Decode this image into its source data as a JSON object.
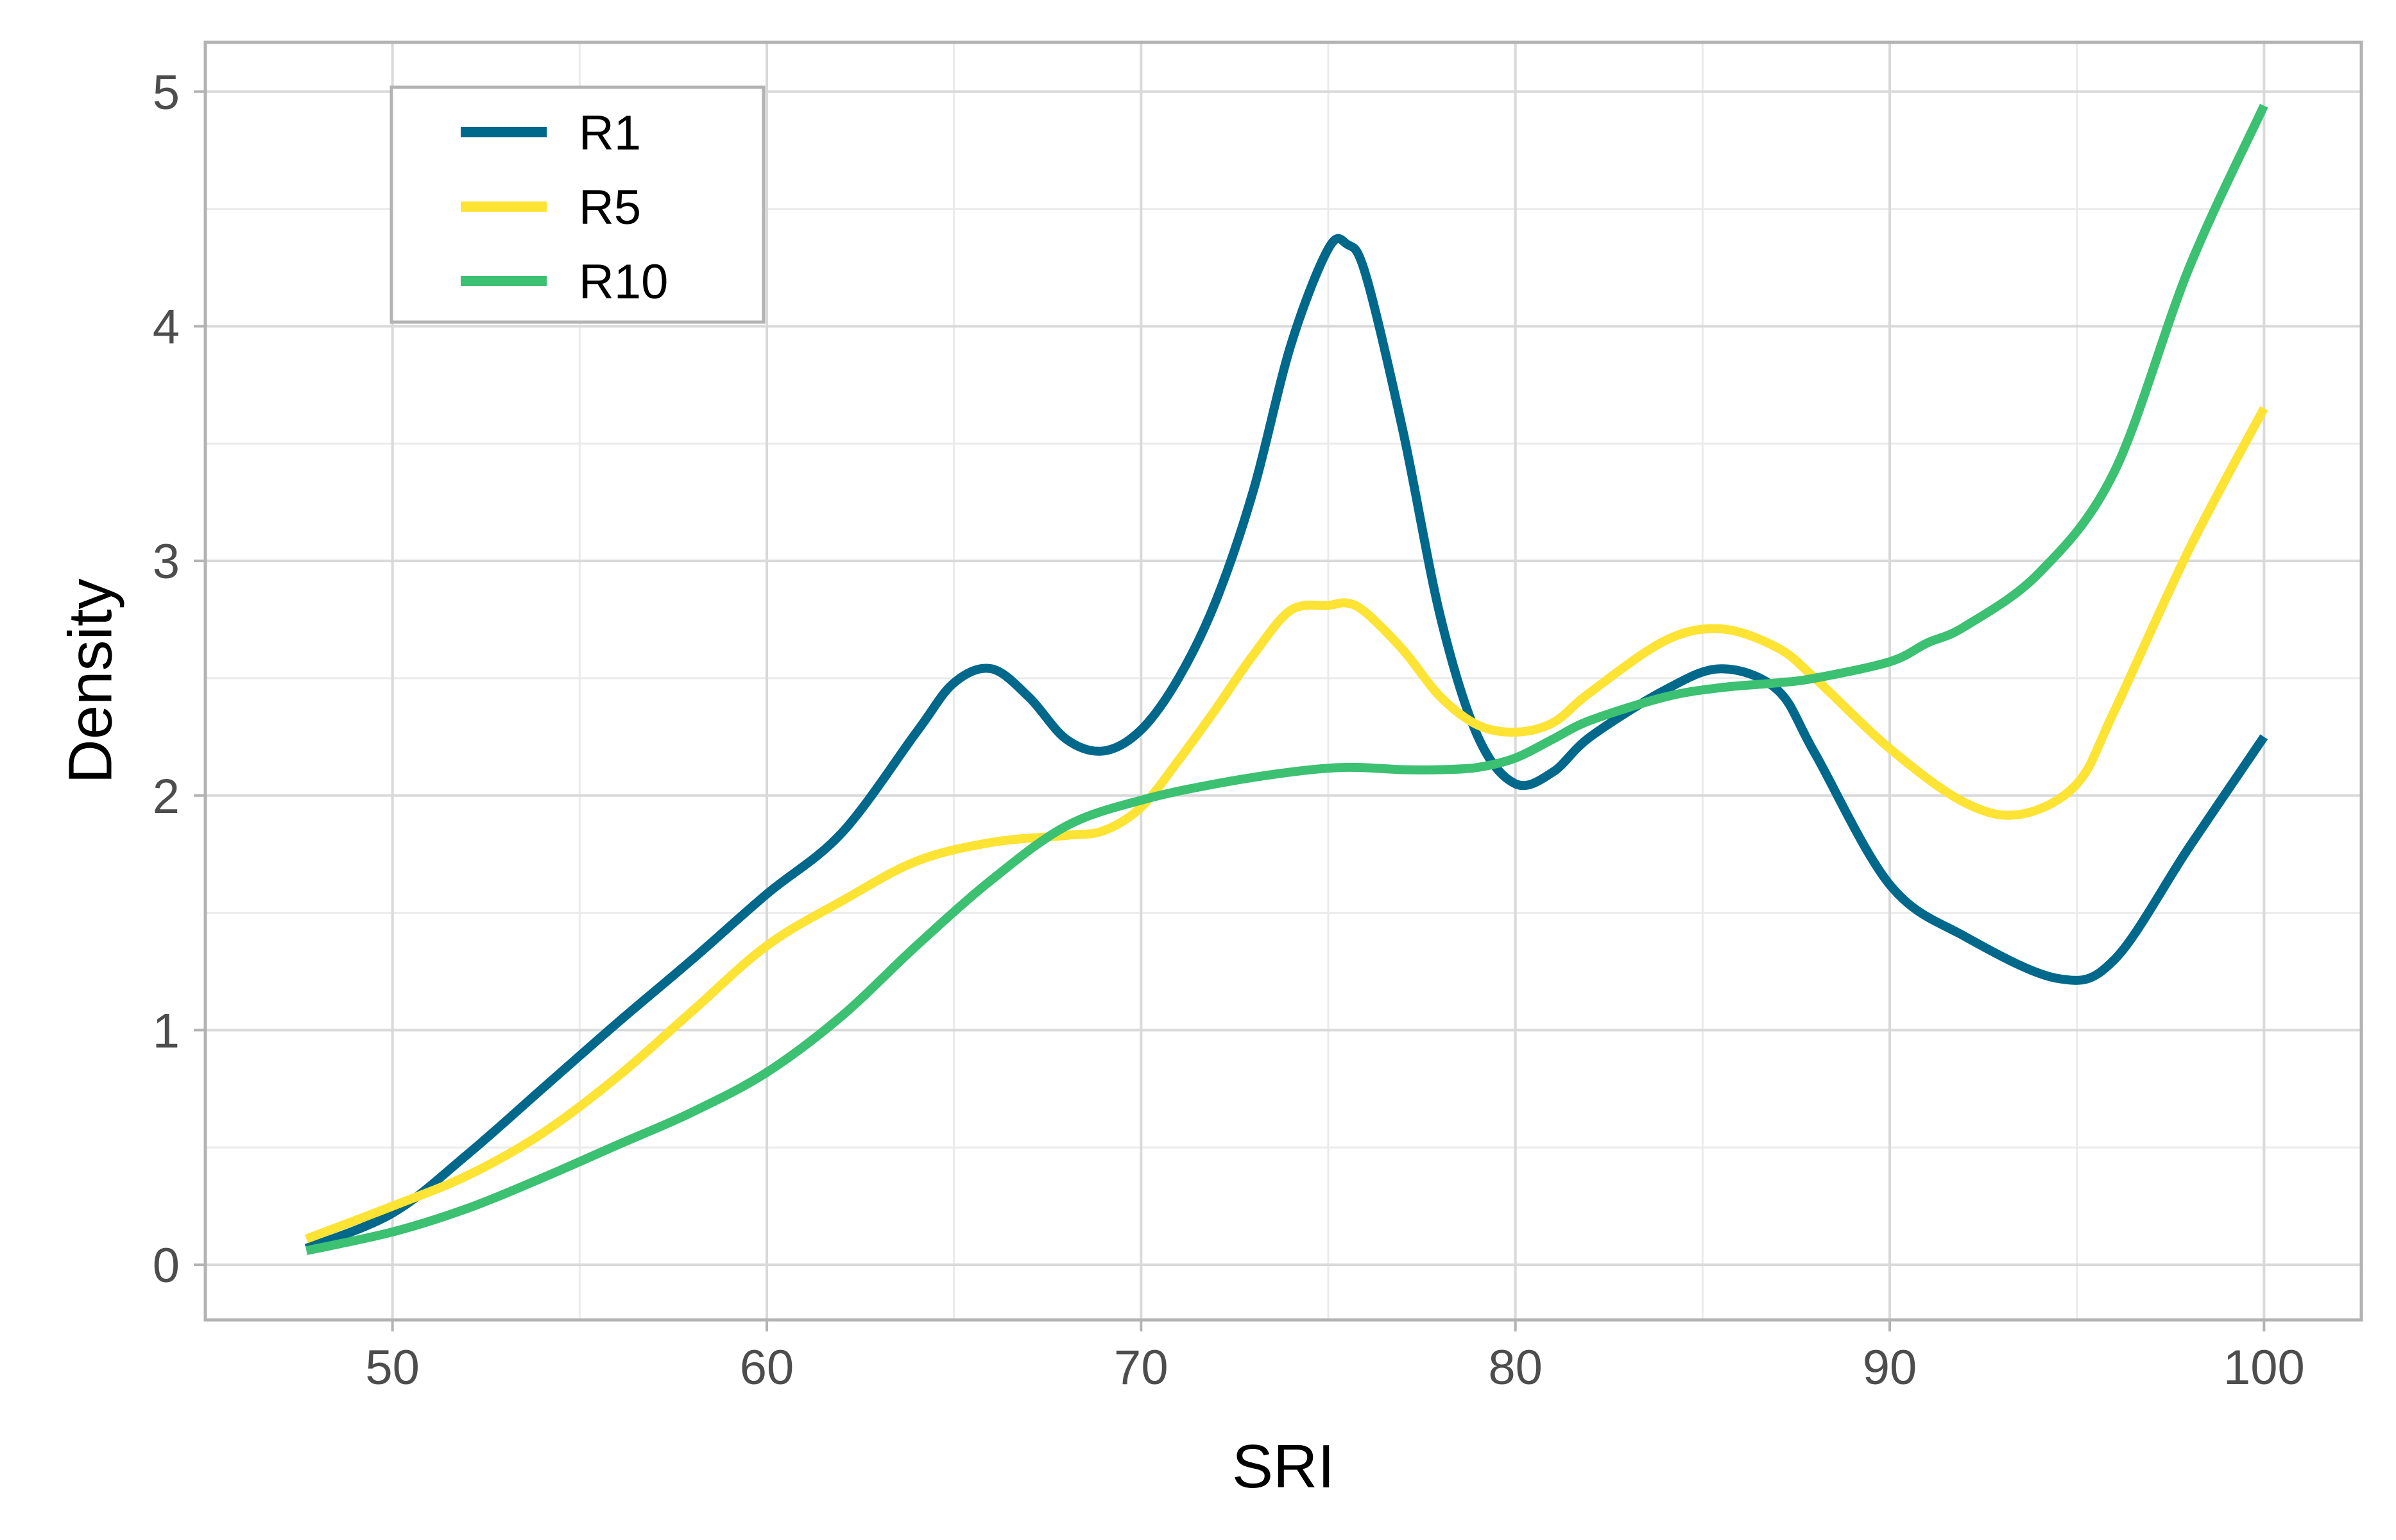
{
  "chart_data": {
    "type": "line",
    "title": "",
    "xlabel": "SRI",
    "ylabel": "Density",
    "xlim": [
      45,
      102.6
    ],
    "ylim": [
      -0.235,
      5.21
    ],
    "x_ticks": [
      50,
      60,
      70,
      80,
      90,
      100
    ],
    "x_tick_labels": [
      "50",
      "60",
      "70",
      "80",
      "90",
      "100"
    ],
    "y_ticks": [
      0,
      1,
      2,
      3,
      4,
      5
    ],
    "y_tick_labels": [
      "0",
      "1",
      "2",
      "3",
      "4",
      "5"
    ],
    "grid": true,
    "legend": "top-left",
    "series": [
      {
        "name": "R1",
        "color": "#00688B",
        "x": [
          47.7,
          50,
          52,
          54,
          56,
          58,
          60,
          62,
          64,
          65,
          66,
          67,
          68,
          69,
          70,
          71,
          72,
          73,
          74,
          75,
          75.5,
          76,
          77,
          78,
          79,
          80,
          81,
          82,
          84,
          85.5,
          87,
          88,
          90,
          92,
          94.5,
          96,
          98,
          100
        ],
        "values": [
          0.07,
          0.22,
          0.47,
          0.75,
          1.03,
          1.3,
          1.58,
          1.84,
          2.27,
          2.48,
          2.54,
          2.42,
          2.24,
          2.19,
          2.28,
          2.5,
          2.83,
          3.3,
          3.92,
          4.33,
          4.35,
          4.22,
          3.55,
          2.76,
          2.25,
          2.05,
          2.1,
          2.25,
          2.45,
          2.54,
          2.45,
          2.18,
          1.62,
          1.4,
          1.22,
          1.3,
          1.78,
          2.25
        ]
      },
      {
        "name": "R5",
        "color": "#FDE333",
        "x": [
          47.7,
          50,
          52,
          54,
          56,
          58,
          60,
          62,
          64,
          66,
          68,
          69,
          70,
          71,
          72,
          73,
          74,
          75,
          75.5,
          76,
          77,
          78,
          79,
          80,
          81,
          82,
          84,
          85.5,
          87,
          88,
          90,
          92,
          93.5,
          95,
          96,
          98,
          100
        ],
        "values": [
          0.11,
          0.25,
          0.38,
          0.56,
          0.8,
          1.08,
          1.36,
          1.55,
          1.72,
          1.8,
          1.83,
          1.85,
          1.95,
          2.15,
          2.37,
          2.6,
          2.79,
          2.81,
          2.82,
          2.78,
          2.62,
          2.42,
          2.3,
          2.27,
          2.31,
          2.44,
          2.66,
          2.71,
          2.63,
          2.5,
          2.2,
          1.97,
          1.92,
          2.05,
          2.36,
          3.05,
          3.65
        ]
      },
      {
        "name": "R10",
        "color": "#3CC071",
        "x": [
          47.7,
          50,
          52,
          54,
          56,
          58,
          60,
          62,
          64,
          66,
          68,
          70,
          72,
          74,
          75.5,
          77,
          78,
          79,
          80,
          81,
          82,
          84,
          85.5,
          87,
          88,
          90,
          91,
          92,
          94,
          96,
          98,
          100
        ],
        "values": [
          0.06,
          0.14,
          0.24,
          0.37,
          0.51,
          0.65,
          0.82,
          1.06,
          1.36,
          1.64,
          1.87,
          1.98,
          2.05,
          2.1,
          2.12,
          2.11,
          2.11,
          2.12,
          2.16,
          2.24,
          2.32,
          2.42,
          2.46,
          2.48,
          2.5,
          2.57,
          2.65,
          2.72,
          2.95,
          3.38,
          4.25,
          4.94
        ]
      }
    ]
  }
}
